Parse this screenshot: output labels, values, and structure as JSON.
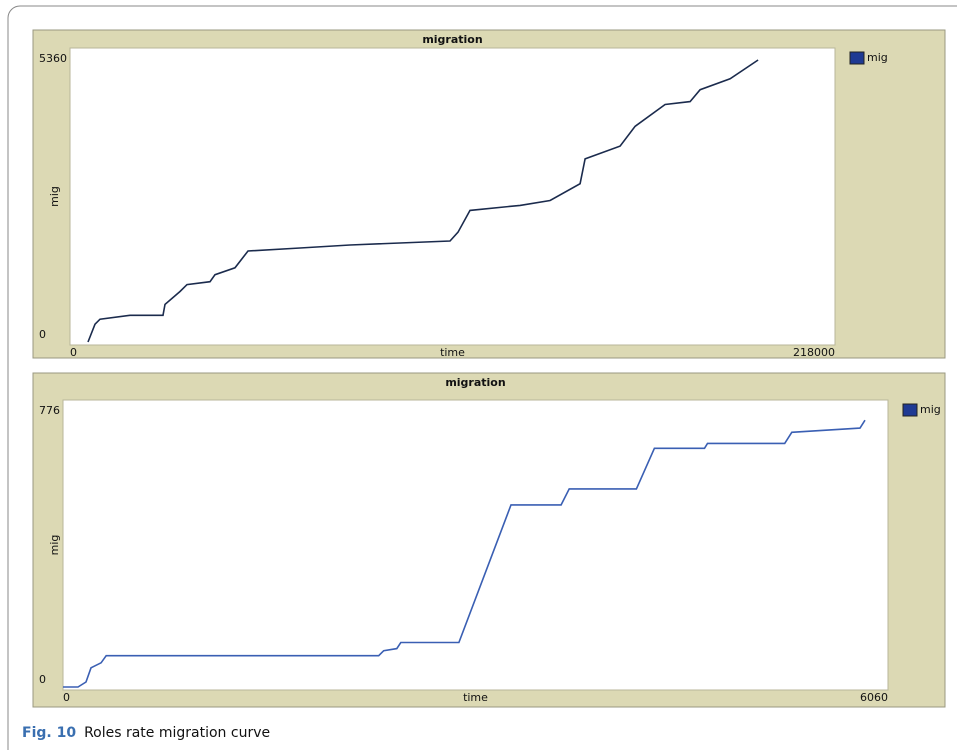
{
  "caption": {
    "label": "Fig. 10",
    "text": "Roles rate migration curve"
  },
  "chart_data": [
    {
      "type": "line",
      "title": "migration",
      "x_label": "time",
      "y_label": "mig",
      "xlim": [
        0,
        218000
      ],
      "ylim": [
        0,
        5360
      ],
      "xticks": [
        0,
        218000
      ],
      "yticks": [
        0,
        5360
      ],
      "legend": "top-right",
      "series": [
        {
          "name": "mig",
          "color": "#1b2b4d",
          "legend_color": "#1f3a93",
          "x": [
            5130,
            7125,
            8550,
            17100,
            26500,
            27075,
            31350,
            33345,
            39900,
            41325,
            47025,
            50730,
            65550,
            79800,
            108300,
            110580,
            114000,
            128250,
            136800,
            145350,
            146775,
            156750,
            161025,
            169575,
            176700,
            179550,
            188100,
            196080
          ],
          "values": [
            0,
            337,
            431,
            506,
            506,
            712,
            956,
            1087,
            1143,
            1274,
            1406,
            1724,
            1780,
            1837,
            1912,
            2080,
            2493,
            2587,
            2680,
            2999,
            3467,
            3711,
            4086,
            4498,
            4554,
            4779,
            4985,
            5341
          ]
        }
      ]
    },
    {
      "type": "line",
      "title": "migration",
      "x_label": "time",
      "y_label": "mig",
      "xlim": [
        0,
        6060
      ],
      "ylim": [
        0,
        776
      ],
      "xticks": [
        0,
        6060
      ],
      "yticks": [
        0,
        776
      ],
      "legend": "top-right",
      "series": [
        {
          "name": "mig",
          "color": "#3a5fb3",
          "legend_color": "#1f3a93",
          "x": [
            0,
            110,
            169,
            206,
            280,
            317,
            2319,
            2356,
            2452,
            2481,
            2908,
            3291,
            3659,
            3718,
            4212,
            4344,
            4712,
            4734,
            5301,
            5353,
            5854,
            5891
          ],
          "values": [
            0,
            0,
            14,
            54,
            68,
            88,
            88,
            102,
            108,
            125,
            125,
            512,
            512,
            557,
            557,
            671,
            671,
            685,
            685,
            716,
            728,
            750
          ]
        }
      ]
    }
  ]
}
